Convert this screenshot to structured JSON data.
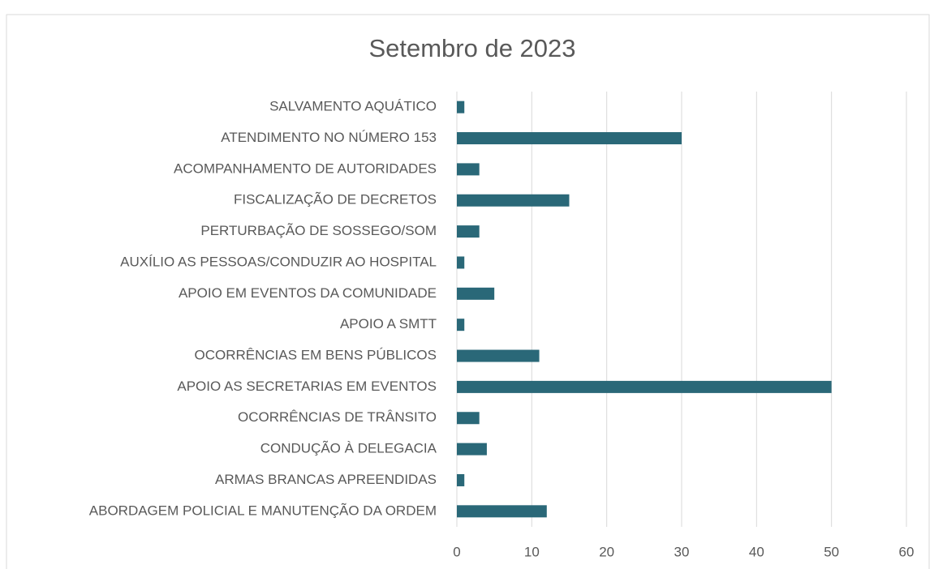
{
  "chart_data": {
    "type": "barh",
    "title": "Setembro de 2023",
    "categories": [
      "SALVAMENTO AQUÁTICO",
      "ATENDIMENTO NO NÚMERO 153",
      "ACOMPANHAMENTO DE AUTORIDADES",
      "FISCALIZAÇÃO DE DECRETOS",
      "PERTURBAÇÃO DE SOSSEGO/SOM",
      "AUXÍLIO AS PESSOAS/CONDUZIR AO HOSPITAL",
      "APOIO EM EVENTOS DA COMUNIDADE",
      "APOIO A SMTT",
      "OCORRÊNCIAS EM BENS PÚBLICOS",
      "APOIO AS SECRETARIAS EM EVENTOS",
      "OCORRÊNCIAS DE TRÂNSITO",
      "CONDUÇÃO À DELEGACIA",
      "ARMAS BRANCAS APREENDIDAS",
      "ABORDAGEM POLICIAL E MANUTENÇÃO DA ORDEM"
    ],
    "values": [
      1,
      30,
      3,
      15,
      3,
      1,
      5,
      1,
      11,
      50,
      3,
      4,
      1,
      12
    ],
    "color": "#2a6878",
    "xlim": [
      0,
      60
    ],
    "xticks": [
      0,
      10,
      20,
      30,
      40,
      50,
      60
    ],
    "grid": true
  }
}
